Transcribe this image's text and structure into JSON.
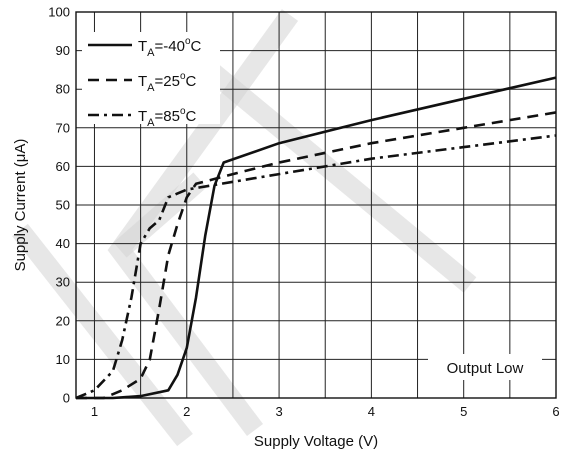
{
  "chart_data": {
    "type": "line",
    "xlabel": "Supply Voltage (V)",
    "ylabel": "Supply Current (μA)",
    "xlim": [
      0.8,
      6
    ],
    "ylim": [
      0,
      100
    ],
    "xticks": [
      1,
      2,
      3,
      4,
      5,
      6
    ],
    "yticks": [
      0,
      10,
      20,
      30,
      40,
      50,
      60,
      70,
      80,
      90,
      100
    ],
    "grid": true,
    "legend_position": "top-left",
    "annotation": "Output Low",
    "series": [
      {
        "name_parts": {
          "main": "T",
          "sub": "A",
          "rest": "=-40",
          "sup": "o",
          "unit": "C"
        },
        "style": "solid",
        "x": [
          0.8,
          1.2,
          1.5,
          1.8,
          1.9,
          2.0,
          2.1,
          2.2,
          2.3,
          2.4,
          3.0,
          4.0,
          5.0,
          6.0
        ],
        "y": [
          0,
          0,
          0.5,
          2,
          6,
          13,
          26,
          42,
          55,
          61,
          66,
          72,
          77.5,
          83
        ]
      },
      {
        "name_parts": {
          "main": "T",
          "sub": "A",
          "rest": "=25",
          "sup": "o",
          "unit": "C"
        },
        "style": "dashed",
        "x": [
          0.8,
          1.1,
          1.3,
          1.5,
          1.6,
          1.7,
          1.8,
          1.9,
          2.0,
          2.1,
          2.5,
          3.0,
          4.0,
          5.0,
          6.0
        ],
        "y": [
          0,
          0,
          2,
          5,
          10,
          23,
          37,
          45,
          52,
          55.5,
          58,
          61,
          66,
          70,
          74
        ]
      },
      {
        "name_parts": {
          "main": "T",
          "sub": "A",
          "rest": "=85",
          "sup": "o",
          "unit": "C"
        },
        "style": "dashdot",
        "x": [
          0.8,
          1.0,
          1.2,
          1.3,
          1.4,
          1.5,
          1.6,
          1.7,
          1.8,
          2.0,
          2.5,
          3.0,
          4.0,
          5.0,
          6.0
        ],
        "y": [
          0,
          2,
          7,
          15,
          26,
          40,
          44,
          46,
          52,
          54,
          56,
          58,
          62,
          65,
          68
        ]
      }
    ]
  },
  "colors": {
    "line": "#111111",
    "grid": "#222222",
    "watermark": "#d4d4d4"
  }
}
